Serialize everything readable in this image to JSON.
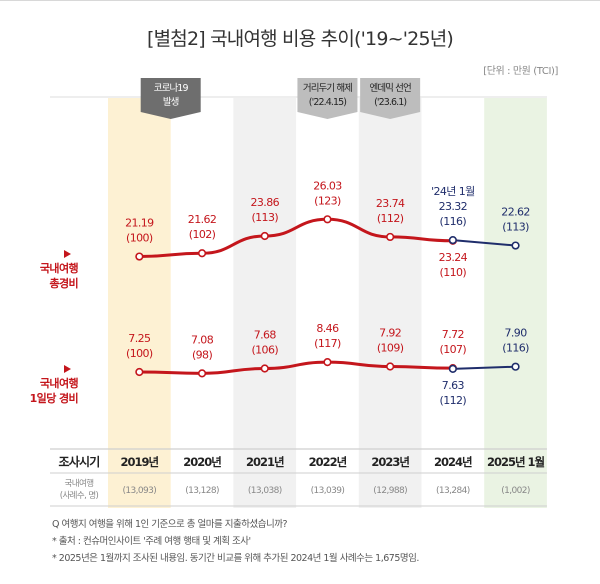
{
  "title": "[별첨2] 국내여행 비용 추이('19~'25년)",
  "unit": "[단위 : 만원 (TCI)]",
  "colors": {
    "red": "#c4161c",
    "navy": "#1f2d6b",
    "band_2019": "#fdf1d3",
    "band_gray": "#f1f1f1",
    "band_2025": "#eaf3e3",
    "marker_dark": "#6e6e6e",
    "marker_light": "#bdbdbd"
  },
  "markers": [
    {
      "line1": "코로나19",
      "line2": "발생",
      "style": "dark"
    },
    {
      "line1": "거리두기 해제",
      "line2": "('22.4.15)",
      "style": "light"
    },
    {
      "line1": "엔데믹 선언",
      "line2": "('23.6.1)",
      "style": "light"
    }
  ],
  "chart_data": {
    "type": "line",
    "title": "[별첨2] 국내여행 비용 추이('19~'25년)",
    "unit": "만원 (TCI)",
    "categories": [
      "2019년",
      "2020년",
      "2021년",
      "2022년",
      "2023년",
      "2024년",
      "2025년 1월"
    ],
    "series": [
      {
        "name": "국내여행 총경비",
        "values": [
          21.19,
          21.62,
          23.86,
          26.03,
          23.74,
          23.24,
          null
        ],
        "index": [
          100,
          102,
          113,
          123,
          112,
          110,
          null
        ],
        "color": "red"
      },
      {
        "name": "국내여행 총경비 ('24년 1월 → '25년 1월)",
        "values": [
          null,
          null,
          null,
          null,
          null,
          23.32,
          22.62
        ],
        "index": [
          null,
          null,
          null,
          null,
          null,
          116,
          113
        ],
        "color": "navy",
        "annotation": "'24년 1월"
      },
      {
        "name": "국내여행 1일당 경비",
        "values": [
          7.25,
          7.08,
          7.68,
          8.46,
          7.92,
          7.72,
          null
        ],
        "index": [
          100,
          98,
          106,
          117,
          109,
          107,
          null
        ],
        "color": "red"
      },
      {
        "name": "국내여행 1일당 경비 ('24년 1월 → '25년 1월)",
        "values": [
          null,
          null,
          null,
          null,
          null,
          7.63,
          7.9
        ],
        "index": [
          null,
          null,
          null,
          null,
          null,
          112,
          116
        ],
        "color": "navy"
      }
    ],
    "row_labels": {
      "total": [
        "국내여행",
        "총경비"
      ],
      "daily": [
        "국내여행",
        "1일당 경비"
      ]
    },
    "table": {
      "header_label": "조사시기",
      "sample_label": [
        "국내여행",
        "(사례수, 명)"
      ],
      "sample_sizes": [
        "(13,093)",
        "(13,128)",
        "(13,038)",
        "(13,039)",
        "(12,988)",
        "(13,284)",
        "(1,002)"
      ]
    },
    "grid": false,
    "legend": "left-row-labels"
  },
  "notes": [
    "Q 여행지 여행을 위해 1인 기준으로 총 얼마를 지출하셨습니까?",
    "* 출처 : 컨슈머인사이트 '주례 여행 행태 및 계획 조사'",
    "* 2025년은 1월까지 조사된 내용임. 동기간 비교를 위해 추가된 2024년 1월 사례수는 1,675명임."
  ]
}
